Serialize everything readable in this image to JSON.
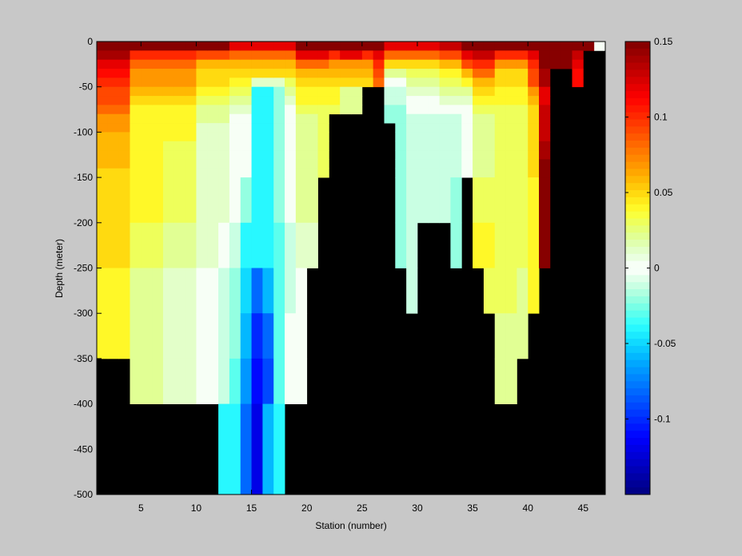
{
  "chart_data": {
    "type": "heatmap",
    "title": "",
    "xlabel": "Station (number)",
    "ylabel": "Depth (meter)",
    "xlim": [
      1,
      47
    ],
    "ylim": [
      -500,
      0
    ],
    "x_ticks": [
      5,
      10,
      15,
      20,
      25,
      30,
      35,
      40,
      45
    ],
    "y_ticks": [
      0,
      -50,
      -100,
      -150,
      -200,
      -250,
      -300,
      -350,
      -400,
      -450,
      -500
    ],
    "depth_bins": [
      -5,
      -15,
      -25,
      -35,
      -45,
      -55,
      -65,
      -75,
      -85,
      -95,
      -105,
      -115,
      -125,
      -135,
      -145,
      -175,
      -225,
      -275,
      -325,
      -375,
      -450
    ],
    "color_limits": [
      -0.15,
      0.15
    ],
    "colorbar": {
      "ticks": [
        0.15,
        0.1,
        0.05,
        0,
        -0.05,
        -0.1
      ],
      "labels": [
        "0.15",
        "0.1",
        "0.05",
        "0",
        "-0.05",
        "-0.1"
      ],
      "levels": 64
    },
    "no_data_color": "#000000",
    "stations": [
      {
        "station": 1,
        "values": [
          0.15,
          0.14,
          0.12,
          0.11,
          0.1,
          0.09,
          0.09,
          0.08,
          0.07,
          0.07,
          0.06,
          0.06,
          0.06,
          0.06,
          0.05,
          0.05,
          0.05,
          0.04,
          0.04
        ]
      },
      {
        "station": 2,
        "values": [
          0.15,
          0.14,
          0.12,
          0.11,
          0.1,
          0.09,
          0.09,
          0.08,
          0.07,
          0.07,
          0.06,
          0.06,
          0.06,
          0.06,
          0.05,
          0.05,
          0.05,
          0.04,
          0.04
        ]
      },
      {
        "station": 3,
        "values": [
          0.15,
          0.14,
          0.12,
          0.11,
          0.1,
          0.09,
          0.09,
          0.08,
          0.07,
          0.07,
          0.06,
          0.06,
          0.06,
          0.06,
          0.05,
          0.05,
          0.05,
          0.04,
          0.04
        ]
      },
      {
        "station": 4,
        "values": [
          0.15,
          0.1,
          0.08,
          0.07,
          0.07,
          0.06,
          0.05,
          0.04,
          0.04,
          0.04,
          0.04,
          0.04,
          0.04,
          0.04,
          0.04,
          0.04,
          0.03,
          0.02,
          0.02,
          0.02
        ]
      },
      {
        "station": 5,
        "values": [
          0.15,
          0.1,
          0.08,
          0.07,
          0.07,
          0.06,
          0.05,
          0.04,
          0.04,
          0.04,
          0.04,
          0.04,
          0.04,
          0.04,
          0.04,
          0.04,
          0.03,
          0.02,
          0.02,
          0.02
        ]
      },
      {
        "station": 6,
        "values": [
          0.15,
          0.1,
          0.08,
          0.07,
          0.07,
          0.06,
          0.05,
          0.04,
          0.04,
          0.04,
          0.04,
          0.04,
          0.04,
          0.04,
          0.04,
          0.04,
          0.03,
          0.02,
          0.02,
          0.02
        ]
      },
      {
        "station": 7,
        "values": [
          0.15,
          0.1,
          0.08,
          0.07,
          0.07,
          0.06,
          0.05,
          0.04,
          0.04,
          0.04,
          0.04,
          0.03,
          0.03,
          0.03,
          0.03,
          0.03,
          0.02,
          0.01,
          0.01,
          0.01
        ]
      },
      {
        "station": 8,
        "values": [
          0.15,
          0.1,
          0.08,
          0.07,
          0.07,
          0.06,
          0.05,
          0.04,
          0.04,
          0.04,
          0.04,
          0.03,
          0.03,
          0.03,
          0.03,
          0.03,
          0.02,
          0.01,
          0.01,
          0.01
        ]
      },
      {
        "station": 9,
        "values": [
          0.15,
          0.1,
          0.08,
          0.07,
          0.07,
          0.06,
          0.05,
          0.04,
          0.04,
          0.04,
          0.04,
          0.03,
          0.03,
          0.03,
          0.03,
          0.03,
          0.02,
          0.01,
          0.01,
          0.01
        ]
      },
      {
        "station": 10,
        "values": [
          0.15,
          0.09,
          0.06,
          0.05,
          0.05,
          0.04,
          0.03,
          0.02,
          0.02,
          0.01,
          0.01,
          0.01,
          0.01,
          0.01,
          0.01,
          0.01,
          0.01,
          0.0,
          0.0,
          0.0
        ]
      },
      {
        "station": 11,
        "values": [
          0.15,
          0.09,
          0.06,
          0.05,
          0.05,
          0.04,
          0.03,
          0.02,
          0.02,
          0.01,
          0.01,
          0.01,
          0.01,
          0.01,
          0.01,
          0.01,
          0.01,
          0.0,
          0.0,
          0.0
        ]
      },
      {
        "station": 12,
        "values": [
          0.15,
          0.09,
          0.06,
          0.05,
          0.05,
          0.04,
          0.03,
          0.02,
          0.02,
          0.01,
          0.01,
          0.01,
          0.01,
          0.01,
          0.01,
          0.01,
          0.0,
          -0.01,
          -0.01,
          -0.01,
          -0.04
        ]
      },
      {
        "station": 13,
        "values": [
          0.12,
          0.08,
          0.06,
          0.05,
          0.04,
          0.03,
          0.02,
          0.01,
          0.0,
          0.0,
          0.0,
          0.0,
          0.0,
          0.0,
          0.0,
          0.0,
          -0.01,
          -0.02,
          -0.02,
          -0.03,
          -0.04
        ]
      },
      {
        "station": 14,
        "values": [
          0.12,
          0.08,
          0.06,
          0.05,
          0.04,
          0.03,
          0.02,
          0.01,
          0.0,
          0.0,
          0.0,
          0.0,
          0.0,
          0.0,
          0.0,
          -0.02,
          -0.04,
          -0.05,
          -0.06,
          -0.07,
          -0.08
        ]
      },
      {
        "station": 15,
        "values": [
          0.12,
          0.08,
          0.06,
          0.05,
          0.01,
          -0.04,
          -0.04,
          -0.04,
          -0.04,
          -0.04,
          -0.04,
          -0.04,
          -0.04,
          -0.04,
          -0.04,
          -0.04,
          -0.04,
          -0.08,
          -0.1,
          -0.11,
          -0.12
        ]
      },
      {
        "station": 16,
        "values": [
          0.12,
          0.08,
          0.06,
          0.05,
          0.01,
          -0.04,
          -0.04,
          -0.04,
          -0.04,
          -0.04,
          -0.04,
          -0.04,
          -0.04,
          -0.04,
          -0.04,
          -0.04,
          -0.04,
          -0.06,
          -0.08,
          -0.09,
          -0.06
        ]
      },
      {
        "station": 17,
        "values": [
          0.12,
          0.08,
          0.06,
          0.05,
          0.01,
          -0.02,
          -0.02,
          -0.02,
          -0.02,
          -0.02,
          -0.02,
          -0.02,
          -0.02,
          -0.02,
          -0.02,
          -0.02,
          -0.03,
          -0.03,
          -0.03,
          -0.03,
          -0.04
        ]
      },
      {
        "station": 18,
        "values": [
          0.12,
          0.08,
          0.06,
          0.05,
          0.03,
          0.02,
          0.01,
          0.0,
          0.0,
          0.0,
          0.0,
          0.0,
          0.0,
          0.0,
          0.0,
          0.0,
          -0.01,
          -0.01,
          0.0,
          0.0
        ]
      },
      {
        "station": 19,
        "values": [
          0.15,
          0.12,
          0.08,
          0.06,
          0.05,
          0.04,
          0.04,
          0.03,
          0.02,
          0.02,
          0.02,
          0.02,
          0.02,
          0.02,
          0.02,
          0.02,
          0.01,
          0.0,
          0.0,
          0.0
        ]
      },
      {
        "station": 20,
        "values": [
          0.15,
          0.12,
          0.08,
          0.06,
          0.05,
          0.04,
          0.04,
          0.03,
          0.02,
          0.02,
          0.02,
          0.02,
          0.02,
          0.02,
          0.02,
          0.02,
          0.01
        ]
      },
      {
        "station": 21,
        "values": [
          0.15,
          0.12,
          0.08,
          0.06,
          0.05,
          0.04,
          0.04,
          0.03,
          0.03,
          0.03,
          0.03,
          0.03,
          0.03,
          0.03,
          0.03
        ]
      },
      {
        "station": 22,
        "values": [
          0.15,
          0.1,
          0.07,
          0.06,
          0.05,
          0.04,
          0.04,
          0.03
        ]
      },
      {
        "station": 23,
        "values": [
          0.15,
          0.12,
          0.07,
          0.06,
          0.05,
          0.02,
          0.02,
          0.02
        ]
      },
      {
        "station": 24,
        "values": [
          0.15,
          0.12,
          0.07,
          0.06,
          0.05,
          0.02,
          0.02,
          0.02
        ]
      },
      {
        "station": 25,
        "values": [
          0.15,
          0.1,
          0.07,
          0.06,
          0.05
        ]
      },
      {
        "station": 26,
        "values": [
          0.15,
          0.12,
          0.1,
          0.09,
          0.08
        ]
      },
      {
        "station": 27,
        "values": [
          0.12,
          0.08,
          0.05,
          0.02,
          0.0,
          -0.01,
          -0.01,
          -0.02,
          -0.02
        ]
      },
      {
        "station": 28,
        "values": [
          0.12,
          0.08,
          0.05,
          0.02,
          0.0,
          -0.01,
          -0.01,
          -0.02,
          -0.02,
          -0.02,
          -0.02,
          -0.02,
          -0.02,
          -0.02,
          -0.02,
          -0.02,
          -0.02
        ]
      },
      {
        "station": 29,
        "values": [
          0.12,
          0.08,
          0.05,
          0.03,
          0.02,
          0.01,
          0.0,
          0.0,
          -0.01,
          -0.01,
          -0.01,
          -0.01,
          -0.01,
          -0.01,
          -0.01,
          -0.01,
          -0.01,
          -0.01
        ]
      },
      {
        "station": 30,
        "values": [
          0.12,
          0.08,
          0.05,
          0.03,
          0.02,
          0.01,
          0.0,
          0.0,
          -0.01,
          -0.01,
          -0.01,
          -0.01,
          -0.01,
          -0.01,
          -0.01,
          -0.01
        ]
      },
      {
        "station": 31,
        "values": [
          0.12,
          0.08,
          0.05,
          0.03,
          0.02,
          0.01,
          0.0,
          0.0,
          -0.01,
          -0.01,
          -0.01,
          -0.01,
          -0.01,
          -0.01,
          -0.01,
          -0.01
        ]
      },
      {
        "station": 32,
        "values": [
          0.13,
          0.09,
          0.06,
          0.04,
          0.03,
          0.02,
          0.01,
          0.0,
          -0.01,
          -0.01,
          -0.01,
          -0.01,
          -0.01,
          -0.01,
          -0.01,
          -0.01
        ]
      },
      {
        "station": 33,
        "values": [
          0.13,
          0.09,
          0.06,
          0.04,
          0.03,
          0.02,
          0.01,
          0.0,
          -0.01,
          -0.01,
          -0.01,
          -0.01,
          -0.01,
          -0.01,
          -0.01,
          -0.02,
          -0.02
        ]
      },
      {
        "station": 34,
        "values": [
          0.15,
          0.12,
          0.09,
          0.06,
          0.04,
          0.02,
          0.01,
          0.0,
          0.0,
          0.0,
          0.0,
          0.0,
          0.0,
          0.0,
          0.0
        ]
      },
      {
        "station": 35,
        "values": [
          0.15,
          0.13,
          0.1,
          0.08,
          0.06,
          0.05,
          0.04,
          0.03,
          0.02,
          0.02,
          0.02,
          0.02,
          0.02,
          0.02,
          0.02,
          0.03,
          0.04
        ]
      },
      {
        "station": 36,
        "values": [
          0.15,
          0.13,
          0.1,
          0.08,
          0.06,
          0.05,
          0.04,
          0.03,
          0.02,
          0.02,
          0.02,
          0.02,
          0.02,
          0.02,
          0.02,
          0.03,
          0.04,
          0.03
        ]
      },
      {
        "station": 37,
        "values": [
          0.15,
          0.1,
          0.07,
          0.05,
          0.05,
          0.04,
          0.04,
          0.03,
          0.03,
          0.03,
          0.03,
          0.03,
          0.03,
          0.03,
          0.03,
          0.03,
          0.03,
          0.03,
          0.02,
          0.02
        ]
      },
      {
        "station": 38,
        "values": [
          0.15,
          0.1,
          0.07,
          0.05,
          0.05,
          0.04,
          0.04,
          0.03,
          0.03,
          0.03,
          0.03,
          0.03,
          0.03,
          0.03,
          0.03,
          0.03,
          0.03,
          0.03,
          0.02,
          0.02
        ]
      },
      {
        "station": 39,
        "values": [
          0.15,
          0.1,
          0.07,
          0.05,
          0.05,
          0.04,
          0.04,
          0.03,
          0.03,
          0.03,
          0.03,
          0.03,
          0.03,
          0.03,
          0.03,
          0.03,
          0.03,
          0.02,
          0.02
        ]
      },
      {
        "station": 40,
        "values": [
          0.15,
          0.12,
          0.1,
          0.09,
          0.09,
          0.07,
          0.06,
          0.05,
          0.05,
          0.05,
          0.05,
          0.05,
          0.05,
          0.05,
          0.05,
          0.04,
          0.04,
          0.04
        ]
      },
      {
        "station": 41,
        "values": [
          0.15,
          0.15,
          0.15,
          0.14,
          0.14,
          0.12,
          0.12,
          0.13,
          0.13,
          0.13,
          0.13,
          0.14,
          0.14,
          0.15,
          0.15,
          0.15,
          0.15
        ]
      },
      {
        "station": 42,
        "values": [
          0.15,
          0.15,
          0.15
        ]
      },
      {
        "station": 43,
        "values": [
          0.15,
          0.15,
          0.15
        ]
      },
      {
        "station": 44,
        "values": [
          0.15,
          0.13,
          0.12,
          0.11,
          0.11
        ]
      },
      {
        "station": 45,
        "values": [
          0.15
        ]
      },
      {
        "station": 46,
        "values": [
          0.0
        ]
      }
    ]
  }
}
